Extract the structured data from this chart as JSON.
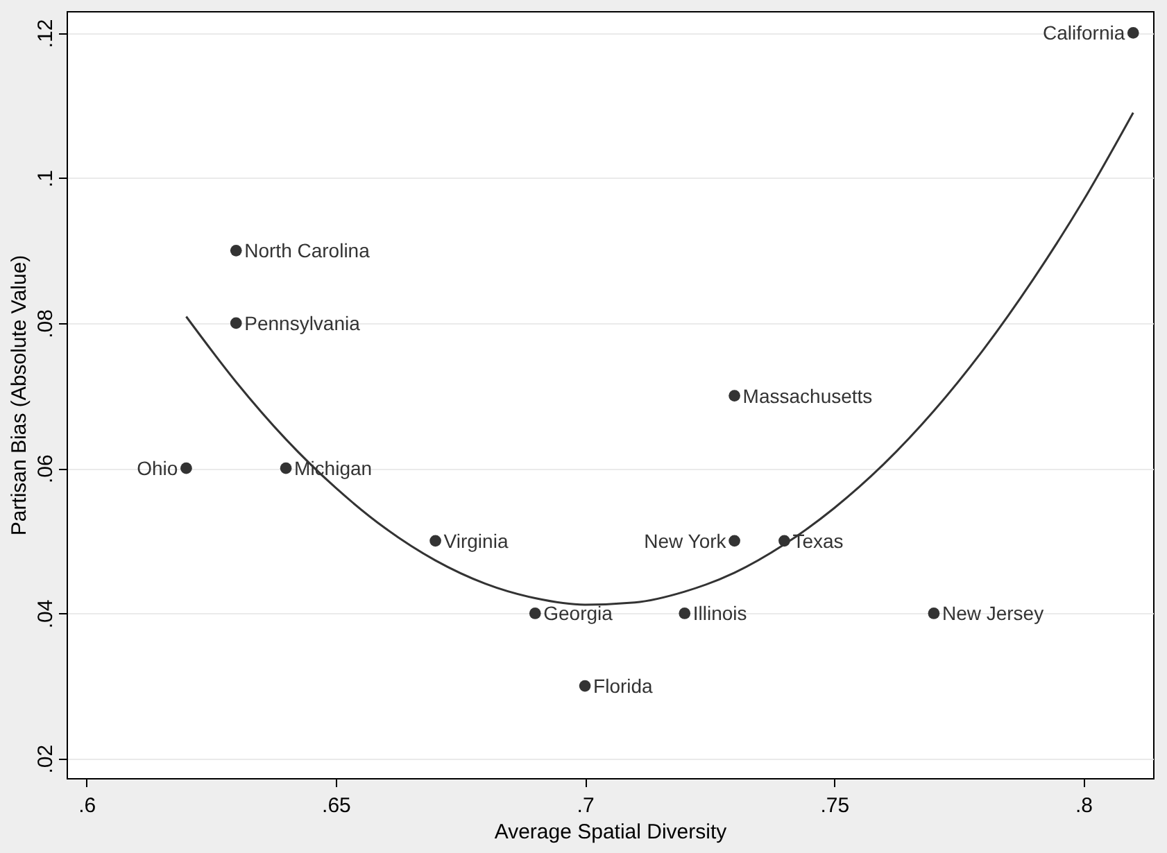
{
  "chart_data": {
    "type": "scatter",
    "xlabel": "Average Spatial Diversity",
    "ylabel": "Partisan Bias (Absolute Value)",
    "xlim": [
      0.596,
      0.814
    ],
    "ylim": [
      0.0173,
      0.123
    ],
    "xticks": [
      {
        "value": 0.6,
        "label": ".6"
      },
      {
        "value": 0.65,
        "label": ".65"
      },
      {
        "value": 0.7,
        "label": ".7"
      },
      {
        "value": 0.75,
        "label": ".75"
      },
      {
        "value": 0.8,
        "label": ".8"
      }
    ],
    "yticks": [
      {
        "value": 0.02,
        "label": ".02"
      },
      {
        "value": 0.04,
        "label": ".04"
      },
      {
        "value": 0.06,
        "label": ".06"
      },
      {
        "value": 0.08,
        "label": ".08"
      },
      {
        "value": 0.1,
        "label": ".1"
      },
      {
        "value": 0.12,
        "label": ".12"
      }
    ],
    "grid": "y",
    "marker": "circle",
    "series": [
      {
        "color": "#333333",
        "x": [
          0.62,
          0.63,
          0.63,
          0.64,
          0.67,
          0.69,
          0.7,
          0.72,
          0.73,
          0.73,
          0.74,
          0.77,
          0.81
        ],
        "values": [
          0.06,
          0.09,
          0.08,
          0.06,
          0.05,
          0.04,
          0.03,
          0.04,
          0.07,
          0.05,
          0.05,
          0.04,
          0.12
        ],
        "value_labels": [
          "Ohio",
          "North Carolina",
          "Pennsylvania",
          "Michigan",
          "Virginia",
          "Georgia",
          "Florida",
          "Illinois",
          "Massachusetts",
          "New York",
          "Texas",
          "New Jersey",
          "California"
        ]
      },
      {
        "type": "line",
        "color": "#333333",
        "marker": "none",
        "line_style": "solid",
        "x": [
          0.62,
          0.63,
          0.64,
          0.65,
          0.66,
          0.67,
          0.68,
          0.69,
          0.7,
          0.71,
          0.72,
          0.73,
          0.74,
          0.75,
          0.76,
          0.77,
          0.78,
          0.79,
          0.8,
          0.81
        ],
        "values": [
          0.0809,
          0.0719,
          0.064,
          0.0573,
          0.0517,
          0.0473,
          0.0441,
          0.0421,
          0.0412,
          0.0415,
          0.043,
          0.0456,
          0.0495,
          0.0545,
          0.0606,
          0.0679,
          0.0764,
          0.0861,
          0.0969,
          0.109
        ]
      }
    ]
  }
}
